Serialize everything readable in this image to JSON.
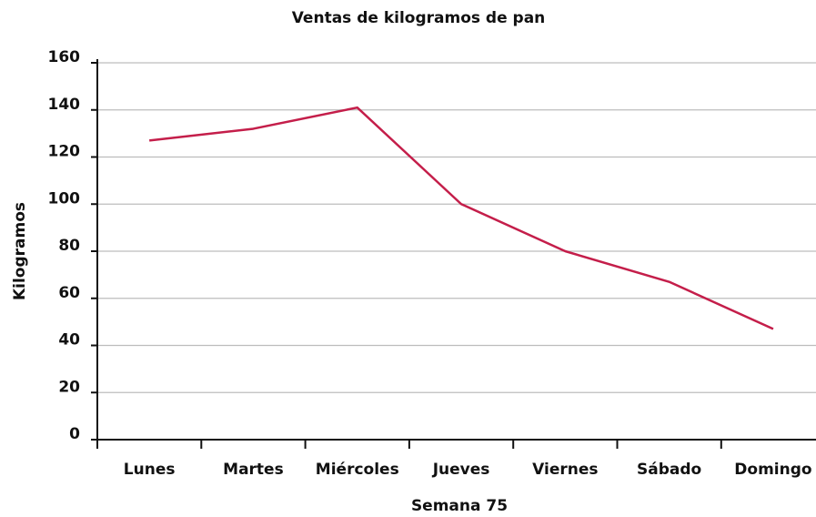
{
  "chart_data": {
    "type": "line",
    "title": "Ventas de kilogramos de pan",
    "x_label": "Semana 75",
    "y_label": "Kilogramos",
    "categories": [
      "Lunes",
      "Martes",
      "Miércoles",
      "Jueves",
      "Viernes",
      "Sábado",
      "Domingo"
    ],
    "series": [
      {
        "name": "Kilogramos",
        "color": "#c41e4a",
        "values": [
          127,
          132,
          141,
          100,
          80,
          67,
          47
        ]
      }
    ],
    "ylim": [
      0,
      160
    ],
    "yticks": [
      0,
      20,
      40,
      60,
      80,
      100,
      120,
      140,
      160
    ],
    "grid": true
  }
}
